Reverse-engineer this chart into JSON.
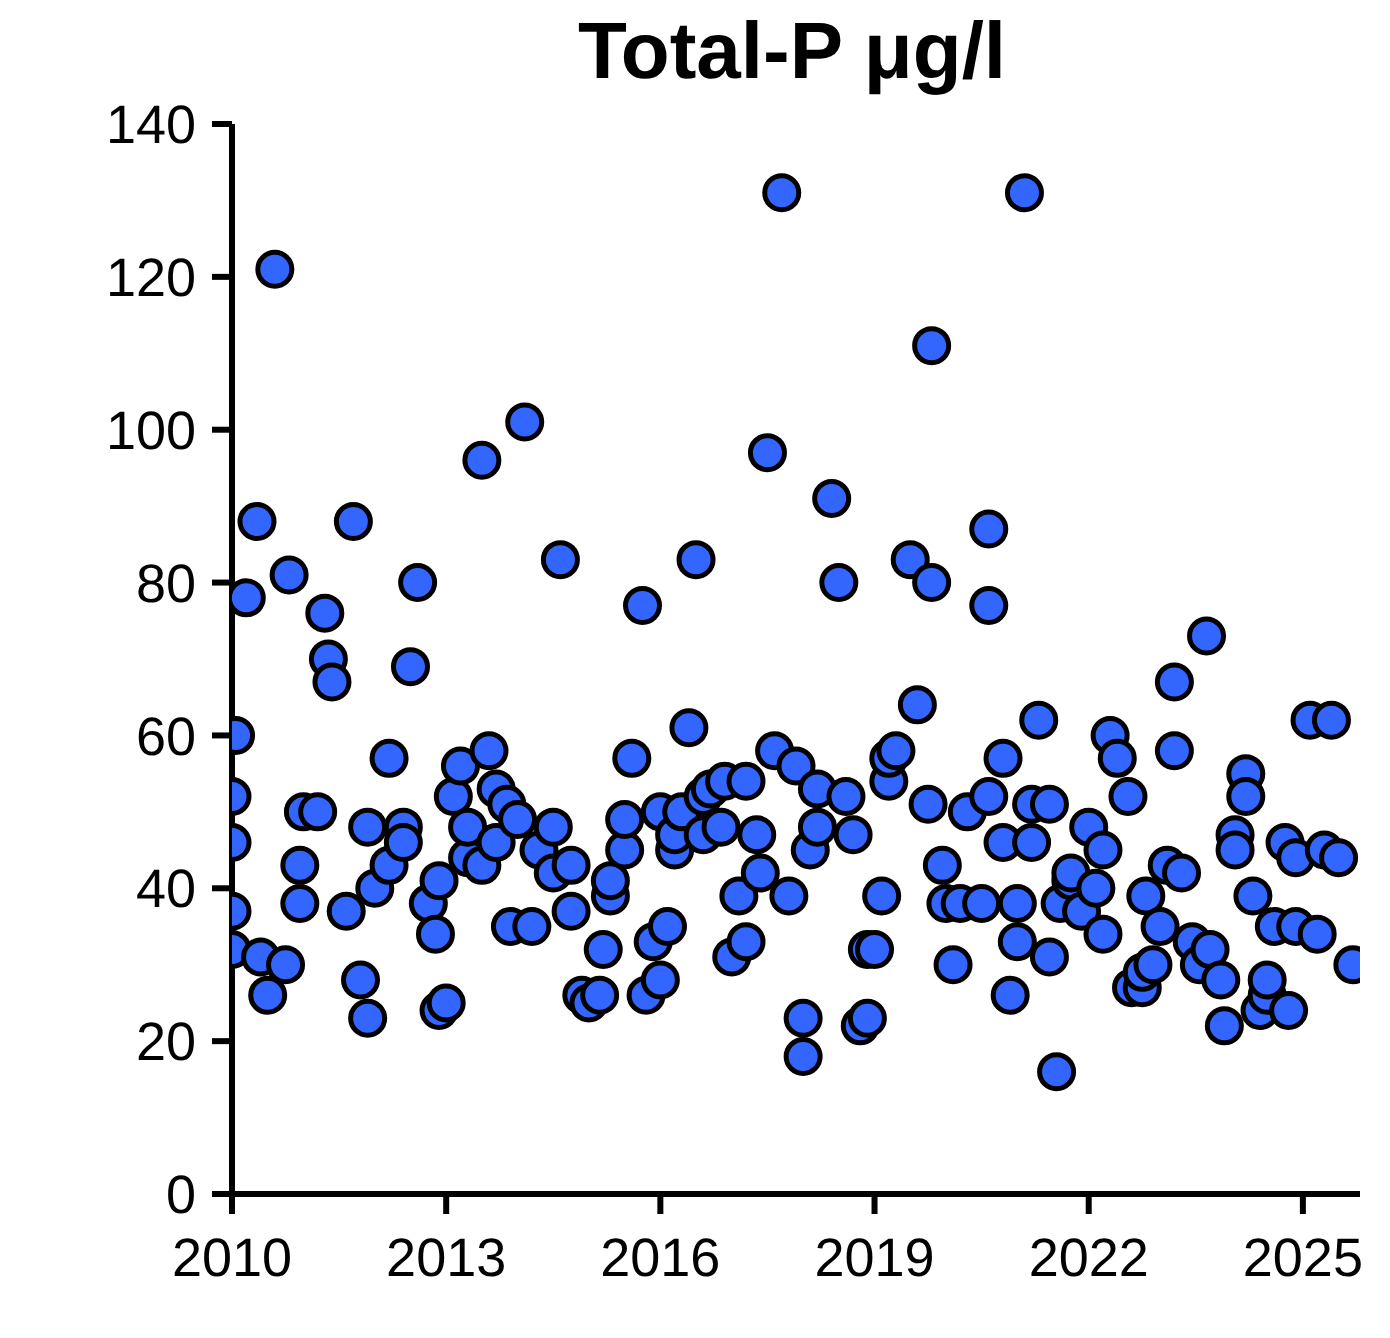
{
  "chart_data": {
    "type": "scatter",
    "title": "Total-P μg/l",
    "color": "#3366ff",
    "marker": "circle",
    "grid": false,
    "legend": false,
    "x": [
      2010.0,
      2010.0,
      2010.0,
      2010.0,
      2010.05,
      2010.2,
      2010.35,
      2010.4,
      2010.5,
      2010.6,
      2010.75,
      2010.8,
      2010.95,
      2010.95,
      2011.0,
      2011.2,
      2011.3,
      2011.35,
      2011.4,
      2011.6,
      2011.7,
      2011.8,
      2011.9,
      2011.9,
      2012.0,
      2012.2,
      2012.2,
      2012.4,
      2012.4,
      2012.5,
      2012.6,
      2012.75,
      2012.85,
      2012.9,
      2012.9,
      2013.0,
      2013.1,
      2013.2,
      2013.3,
      2013.3,
      2013.5,
      2013.5,
      2013.6,
      2013.7,
      2013.7,
      2013.85,
      2013.9,
      2014.0,
      2014.1,
      2014.2,
      2014.3,
      2014.5,
      2014.5,
      2014.6,
      2014.75,
      2014.75,
      2014.9,
      2015.0,
      2015.15,
      2015.2,
      2015.3,
      2015.3,
      2015.5,
      2015.5,
      2015.6,
      2015.75,
      2015.8,
      2015.9,
      2016.0,
      2016.0,
      2016.1,
      2016.2,
      2016.2,
      2016.3,
      2016.4,
      2016.5,
      2016.6,
      2016.6,
      2016.7,
      2016.85,
      2016.9,
      2017.0,
      2017.1,
      2017.2,
      2017.2,
      2017.35,
      2017.4,
      2017.5,
      2017.6,
      2017.7,
      2017.8,
      2017.9,
      2018.0,
      2018.0,
      2018.1,
      2018.2,
      2018.2,
      2018.4,
      2018.5,
      2018.6,
      2018.7,
      2018.8,
      2018.9,
      2018.9,
      2019.0,
      2019.1,
      2019.2,
      2019.2,
      2019.3,
      2019.5,
      2019.6,
      2019.75,
      2019.8,
      2019.8,
      2019.95,
      2020.0,
      2020.1,
      2020.2,
      2020.3,
      2020.5,
      2020.6,
      2020.6,
      2020.6,
      2020.8,
      2020.8,
      2020.9,
      2021.0,
      2021.0,
      2021.1,
      2021.2,
      2021.2,
      2021.3,
      2021.45,
      2021.45,
      2021.55,
      2021.6,
      2021.75,
      2021.75,
      2021.9,
      2022.0,
      2022.1,
      2022.2,
      2022.2,
      2022.3,
      2022.4,
      2022.55,
      2022.6,
      2022.75,
      2022.75,
      2022.8,
      2022.9,
      2023.0,
      2023.1,
      2023.2,
      2023.2,
      2023.3,
      2023.45,
      2023.55,
      2023.65,
      2023.7,
      2023.85,
      2023.9,
      2024.05,
      2024.05,
      2024.2,
      2024.2,
      2024.3,
      2024.4,
      2024.5,
      2024.5,
      2024.6,
      2024.75,
      2024.8,
      2024.9,
      2024.9,
      2025.1,
      2025.2,
      2025.3,
      2025.4,
      2025.5,
      2025.7
    ],
    "values": [
      32,
      37,
      46,
      52,
      60,
      78,
      88,
      31,
      26,
      121,
      30,
      81,
      43,
      38,
      50,
      50,
      76,
      70,
      67,
      37,
      88,
      28,
      48,
      23,
      40,
      43,
      57,
      48,
      46,
      69,
      80,
      38,
      34,
      24,
      41,
      25,
      52,
      56,
      44,
      48,
      43,
      96,
      58,
      46,
      53,
      51,
      35,
      49,
      101,
      35,
      45,
      42,
      48,
      83,
      37,
      43,
      26,
      25,
      26,
      32,
      39,
      41,
      45,
      49,
      57,
      77,
      26,
      33,
      28,
      50,
      35,
      45,
      47,
      50,
      61,
      83,
      47,
      52,
      53,
      48,
      54,
      31,
      39,
      33,
      54,
      47,
      42,
      97,
      58,
      131,
      39,
      56,
      23,
      18,
      45,
      48,
      53,
      91,
      80,
      52,
      47,
      22,
      23,
      32,
      32,
      39,
      54,
      57,
      58,
      83,
      64,
      51,
      80,
      111,
      43,
      38,
      30,
      38,
      50,
      38,
      87,
      77,
      52,
      46,
      57,
      26,
      33,
      38,
      131,
      46,
      51,
      62,
      31,
      51,
      16,
      38,
      41,
      42,
      37,
      48,
      40,
      45,
      34,
      60,
      57,
      52,
      27,
      27,
      29,
      39,
      30,
      35,
      43,
      58,
      67,
      42,
      33,
      30,
      73,
      32,
      28,
      22,
      47,
      45,
      55,
      52,
      39,
      24,
      26,
      28,
      35,
      46,
      24,
      35,
      44,
      62,
      34,
      45,
      62,
      44,
      30
    ],
    "xlim": [
      2010,
      2025.8
    ],
    "xticks": [
      2010,
      2013,
      2016,
      2019,
      2022,
      2025
    ],
    "ylim": [
      0,
      140
    ],
    "yticks": [
      0,
      20,
      40,
      60,
      80,
      100,
      120,
      140
    ]
  }
}
